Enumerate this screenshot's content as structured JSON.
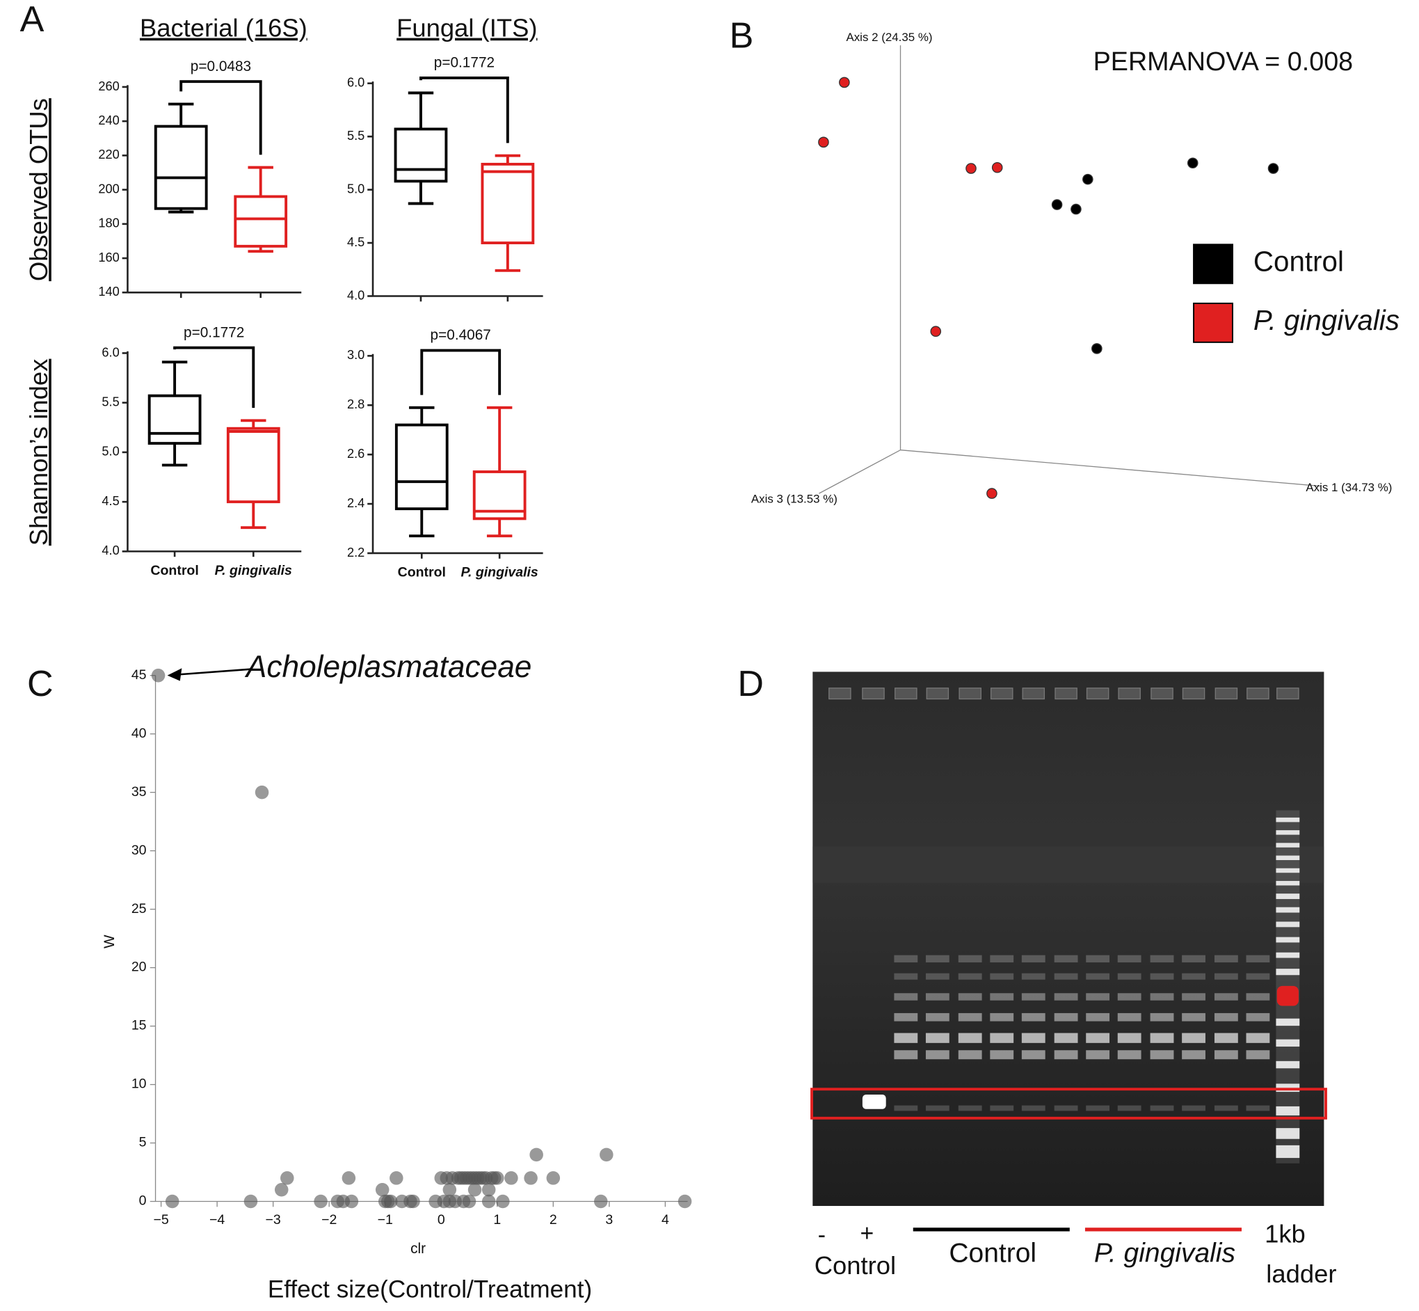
{
  "chart_data": [
    {
      "type": "box",
      "panel": "A",
      "title": "Bacterial (16S)",
      "ylabel": "Observed OTUs",
      "annotation": "p=0.0483",
      "ylim": [
        140,
        260
      ],
      "yticks": [
        140,
        160,
        180,
        200,
        220,
        240,
        260
      ],
      "boxes": [
        {
          "color": "#000000",
          "min": 187,
          "q1": 189,
          "median": 207,
          "q3": 237,
          "max": 250
        },
        {
          "color": "#e02020",
          "min": 164,
          "q1": 167,
          "median": 183,
          "q3": 196,
          "max": 213
        }
      ]
    },
    {
      "type": "box",
      "title": "Fungal (ITS)",
      "annotation": "p=0.1772",
      "ylim": [
        4,
        6
      ],
      "yticks": [
        {
          "value": 4,
          "label": "4.0"
        },
        {
          "value": 4.5,
          "label": "4.5"
        },
        {
          "value": 5,
          "label": "5.0"
        },
        {
          "value": 5.5,
          "label": "5.5"
        },
        {
          "value": 6,
          "label": "6.0"
        }
      ],
      "boxes": [
        {
          "color": "#000000",
          "min": 4.87,
          "q1": 5.08,
          "median": 5.19,
          "q3": 5.57,
          "max": 5.91
        },
        {
          "color": "#e02020",
          "min": 4.24,
          "q1": 4.5,
          "median": 5.17,
          "q3": 5.24,
          "max": 5.32
        }
      ]
    },
    {
      "type": "box",
      "ylabel": "Shannon’s index",
      "annotation": "p=0.1772",
      "categories": [
        "Control",
        "P. gingivalis"
      ],
      "ylim": [
        4,
        6
      ],
      "yticks": [
        {
          "value": 4,
          "label": "4.0"
        },
        {
          "value": 4.5,
          "label": "4.5"
        },
        {
          "value": 5,
          "label": "5.0"
        },
        {
          "value": 5.5,
          "label": "5.5"
        },
        {
          "value": 6,
          "label": "6.0"
        }
      ],
      "boxes": [
        {
          "color": "#000000",
          "min": 4.87,
          "q1": 5.09,
          "median": 5.19,
          "q3": 5.57,
          "max": 5.91
        },
        {
          "color": "#e02020",
          "min": 4.24,
          "q1": 4.5,
          "median": 5.21,
          "q3": 5.24,
          "max": 5.32
        }
      ]
    },
    {
      "type": "box",
      "annotation": "p=0.4067",
      "categories": [
        "Control",
        "P. gingivalis"
      ],
      "ylim": [
        2.2,
        3
      ],
      "yticks": [
        {
          "value": 2.2,
          "label": "2.2"
        },
        {
          "value": 2.4,
          "label": "2.4"
        },
        {
          "value": 2.6,
          "label": "2.6"
        },
        {
          "value": 2.8,
          "label": "2.8"
        },
        {
          "value": 3,
          "label": "3.0"
        }
      ],
      "boxes": [
        {
          "color": "#000000",
          "min": 2.27,
          "q1": 2.38,
          "median": 2.49,
          "q3": 2.72,
          "max": 2.79
        },
        {
          "color": "#e02020",
          "min": 2.27,
          "q1": 2.34,
          "median": 2.37,
          "q3": 2.53,
          "max": 2.79
        }
      ]
    },
    {
      "type": "scatter3d",
      "panel": "B",
      "annotation": "PERMANOVA = 0.008",
      "axis_labels": [
        "Axis 1 (34.73 %)",
        "Axis 2 (24.35 %)",
        "Axis 3 (13.53 %)"
      ],
      "series": [
        {
          "name": "Control",
          "color": "#000000",
          "x": [
            2.07,
            1.73,
            1.94,
            3.23,
            4.12,
            2.17
          ],
          "y": [
            2.99,
            2.71,
            2.66,
            3.17,
            3.11,
            1.12
          ]
        },
        {
          "name": "P. gingivalis",
          "color": "#e02020",
          "x": [
            -0.62,
            -0.85,
            0.78,
            1.07,
            0.39,
            1.01
          ],
          "y": [
            4.06,
            3.4,
            3.11,
            3.12,
            1.31,
            -0.48
          ]
        }
      ]
    },
    {
      "type": "scatter",
      "panel": "C",
      "annotation": "Acholeplasmataceae",
      "xlabel": "clr",
      "ylabel": "W",
      "caption": "Effect size(Control/Treatment)",
      "color": "#555555",
      "x": [
        -5.05,
        -3.2,
        -4.8,
        -3.4,
        -2.85,
        -2.75,
        -2.15,
        -1.85,
        -1.75,
        -1.65,
        -1.6,
        -1.05,
        -1.0,
        -0.95,
        -0.9,
        -0.8,
        -0.7,
        -0.55,
        -0.5,
        -0.1,
        0.0,
        0.05,
        0.1,
        0.15,
        0.2,
        0.25,
        0.3,
        0.35,
        0.4,
        0.45,
        0.5,
        0.55,
        0.6,
        0.65,
        0.7,
        0.75,
        0.8,
        0.85,
        0.9,
        0.95,
        1.0,
        0.85,
        1.1,
        0.4,
        0.5,
        1.25,
        1.6,
        1.7,
        2.0,
        2.85,
        2.95,
        4.35,
        0.6,
        0.15
      ],
      "values": [
        45,
        35,
        0,
        0,
        1,
        2,
        0,
        0,
        0,
        2,
        0,
        1,
        0,
        0,
        0,
        2,
        0,
        0,
        0,
        0,
        2,
        0,
        2,
        0,
        2,
        0,
        2,
        2,
        2,
        2,
        2,
        2,
        2,
        2,
        2,
        2,
        2,
        1,
        2,
        2,
        2,
        0,
        0,
        0,
        0,
        2,
        2,
        4,
        2,
        0,
        4,
        0,
        1,
        1
      ],
      "xlim": [
        -5.1,
        4.4
      ],
      "ylim": [
        0,
        45
      ],
      "xticks": [
        {
          "value": -5,
          "label": "−5"
        },
        {
          "value": -4,
          "label": "−4"
        },
        {
          "value": -3,
          "label": "−3"
        },
        {
          "value": -2,
          "label": "−2"
        },
        {
          "value": -1,
          "label": "−1"
        },
        0,
        1,
        2,
        3,
        4
      ],
      "yticks": [
        0,
        5,
        10,
        15,
        20,
        25,
        30,
        35,
        40,
        45
      ]
    }
  ],
  "gel": {
    "panel": "D",
    "lanes": [
      "-",
      "+"
    ],
    "lane_group_label": "Control",
    "groups": [
      {
        "name": "Control",
        "color": "#000000"
      },
      {
        "name": "P. gingivalis",
        "color": "#e02020"
      }
    ],
    "ladder": [
      "1kb",
      "ladder"
    ]
  }
}
